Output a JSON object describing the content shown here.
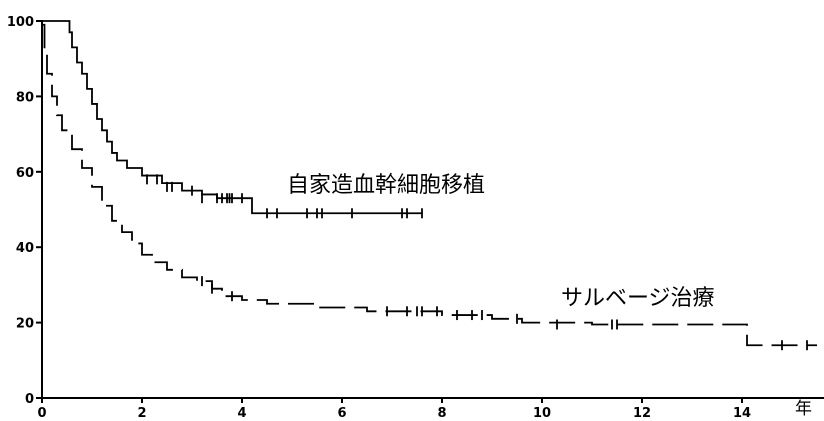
{
  "chart_data": {
    "type": "line",
    "title": "",
    "xlabel": "",
    "ylabel": "",
    "x_unit": "年",
    "xlim": [
      0,
      15.5
    ],
    "ylim": [
      0,
      100
    ],
    "x_ticks": [
      "0",
      "2",
      "4",
      "6",
      "8",
      "10",
      "12",
      "14"
    ],
    "y_ticks": [
      "0",
      "20",
      "40",
      "60",
      "80",
      "100"
    ],
    "grid": false,
    "series": [
      {
        "name": "自家造血幹細胞移植",
        "dashed": false,
        "points": [
          [
            0,
            100
          ],
          [
            0.55,
            100
          ],
          [
            0.55,
            97
          ],
          [
            0.6,
            93
          ],
          [
            0.7,
            89
          ],
          [
            0.8,
            86
          ],
          [
            0.9,
            82
          ],
          [
            1.0,
            78
          ],
          [
            1.1,
            74
          ],
          [
            1.2,
            71
          ],
          [
            1.3,
            68
          ],
          [
            1.4,
            65
          ],
          [
            1.5,
            63
          ],
          [
            1.7,
            61
          ],
          [
            2.0,
            59
          ],
          [
            2.4,
            57
          ],
          [
            2.8,
            55
          ],
          [
            3.2,
            54
          ],
          [
            3.5,
            53
          ],
          [
            4.2,
            53
          ],
          [
            4.2,
            49
          ],
          [
            7.6,
            49
          ]
        ],
        "censored": [
          [
            2.1,
            58
          ],
          [
            2.3,
            58
          ],
          [
            2.5,
            56
          ],
          [
            2.6,
            56
          ],
          [
            3.0,
            55
          ],
          [
            3.2,
            53
          ],
          [
            3.5,
            53
          ],
          [
            3.6,
            53
          ],
          [
            3.7,
            53
          ],
          [
            3.75,
            53
          ],
          [
            3.8,
            53
          ],
          [
            4.0,
            53
          ],
          [
            4.5,
            49
          ],
          [
            4.7,
            49
          ],
          [
            5.3,
            49
          ],
          [
            5.5,
            49
          ],
          [
            5.6,
            49
          ],
          [
            6.2,
            49
          ],
          [
            7.2,
            49
          ],
          [
            7.3,
            49
          ],
          [
            7.6,
            49
          ]
        ]
      },
      {
        "name": "サルベージ治療",
        "dashed": true,
        "points": [
          [
            0,
            99
          ],
          [
            0.05,
            93
          ],
          [
            0.1,
            86
          ],
          [
            0.2,
            80
          ],
          [
            0.3,
            75
          ],
          [
            0.4,
            71
          ],
          [
            0.6,
            66
          ],
          [
            0.8,
            61
          ],
          [
            1.0,
            56
          ],
          [
            1.2,
            51
          ],
          [
            1.4,
            47
          ],
          [
            1.6,
            44
          ],
          [
            1.8,
            41
          ],
          [
            2.0,
            38
          ],
          [
            2.2,
            36
          ],
          [
            2.5,
            34
          ],
          [
            2.8,
            32
          ],
          [
            3.1,
            31
          ],
          [
            3.4,
            29
          ],
          [
            3.6,
            27
          ],
          [
            4.0,
            26
          ],
          [
            4.5,
            25
          ],
          [
            5.5,
            24
          ],
          [
            6.5,
            23
          ],
          [
            8.0,
            22
          ],
          [
            9.0,
            21
          ],
          [
            9.6,
            20
          ],
          [
            11.0,
            19.5
          ],
          [
            14.1,
            19.5
          ],
          [
            14.1,
            14
          ],
          [
            15.5,
            14
          ]
        ],
        "censored": [
          [
            3.2,
            31
          ],
          [
            3.4,
            29
          ],
          [
            3.8,
            27
          ],
          [
            6.9,
            23
          ],
          [
            7.3,
            23
          ],
          [
            7.5,
            23
          ],
          [
            7.6,
            23
          ],
          [
            7.9,
            23
          ],
          [
            8.3,
            22
          ],
          [
            8.6,
            22
          ],
          [
            8.8,
            22
          ],
          [
            9.5,
            21
          ],
          [
            10.3,
            19.5
          ],
          [
            11.4,
            19.5
          ],
          [
            11.5,
            19.5
          ],
          [
            14.8,
            14
          ],
          [
            15.3,
            14
          ]
        ]
      }
    ]
  }
}
